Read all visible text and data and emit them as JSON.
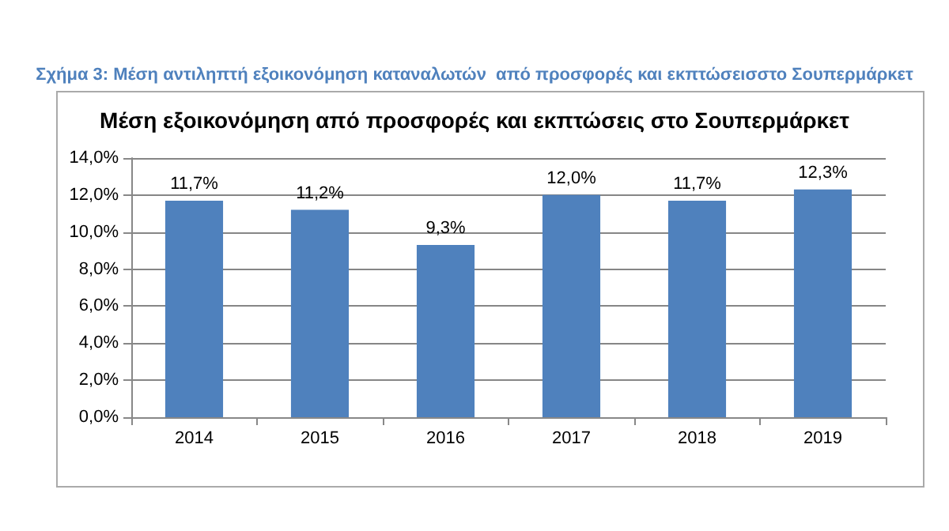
{
  "chart_data": {
    "type": "bar",
    "title": "Μέση εξοικονόμηση από προσφορές και εκπτώσεις στο Σουπερμάρκετ",
    "annotations": [
      "Σχήμα 3: Μέση αντιληπτή εξοικονόμηση καταναλωτών  από προσφορές και εκπτώσεισστο Σουπερμάρκετ"
    ],
    "categories": [
      "2014",
      "2015",
      "2016",
      "2017",
      "2018",
      "2019"
    ],
    "values": [
      11.7,
      11.2,
      9.3,
      12.0,
      11.7,
      12.3
    ],
    "value_labels": [
      "11,7%",
      "11,2%",
      "9,3%",
      "12,0%",
      "11,7%",
      "12,3%"
    ],
    "color": "#4f81bd",
    "ylim": [
      0,
      14
    ],
    "yticks": [
      {
        "value": 0,
        "label": "0,0%"
      },
      {
        "value": 2,
        "label": "2,0%"
      },
      {
        "value": 4,
        "label": "4,0%"
      },
      {
        "value": 6,
        "label": "6,0%"
      },
      {
        "value": 8,
        "label": "8,0%"
      },
      {
        "value": 10,
        "label": "10,0%"
      },
      {
        "value": 12,
        "label": "12,0%"
      },
      {
        "value": 14,
        "label": "14,0%"
      }
    ],
    "grid": "y"
  }
}
